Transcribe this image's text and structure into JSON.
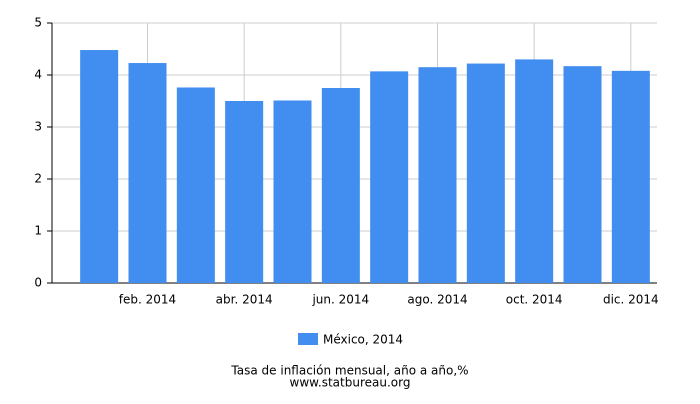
{
  "chart_data": {
    "type": "bar",
    "categories": [
      null,
      "feb. 2014",
      null,
      "abr. 2014",
      null,
      "jun. 2014",
      null,
      "ago. 2014",
      null,
      "oct. 2014",
      null,
      "dic. 2014"
    ],
    "series": [
      {
        "name": "México, 2014",
        "color": "#418ef0",
        "values": [
          4.48,
          4.23,
          3.76,
          3.5,
          3.51,
          3.75,
          4.07,
          4.15,
          4.22,
          4.3,
          4.17,
          4.08
        ]
      }
    ],
    "ylim": [
      0,
      5
    ],
    "yticks": [
      0,
      1,
      2,
      3,
      4,
      5
    ],
    "grid": true,
    "footer": [
      "Tasa de inflación mensual, año a año,%",
      "www.statbureau.org"
    ]
  }
}
